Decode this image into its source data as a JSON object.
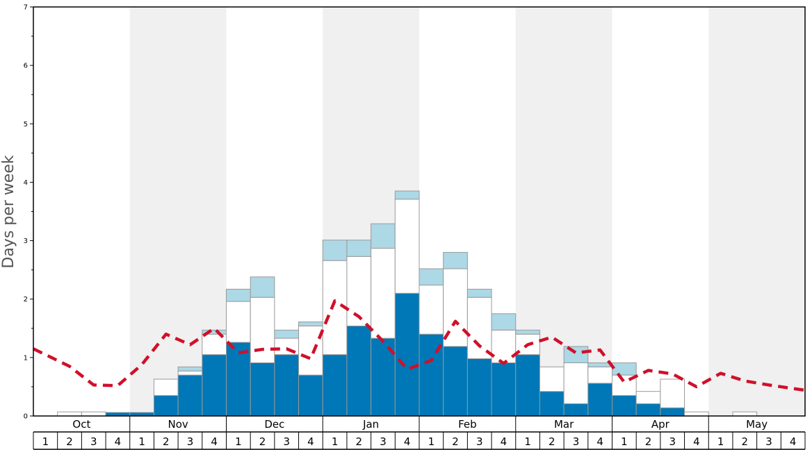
{
  "chart_data": {
    "type": "bar",
    "ylabel": "Days per week",
    "ylim": [
      0,
      7
    ],
    "yticks": [
      0,
      1,
      2,
      3,
      4,
      5,
      6,
      7
    ],
    "months": [
      "Oct",
      "Nov",
      "Dec",
      "Jan",
      "Feb",
      "Mar",
      "Apr",
      "May"
    ],
    "week_labels": [
      "1",
      "2",
      "3",
      "4"
    ],
    "shaded_months": [
      "Nov",
      "Jan",
      "Mar",
      "May"
    ],
    "colors": {
      "dark": "#0077b6",
      "white": "#ffffff",
      "light": "#add8e6",
      "line": "#d0102a",
      "shade": "#f0f0f0"
    },
    "categories": [
      "Oct-1",
      "Oct-2",
      "Oct-3",
      "Oct-4",
      "Nov-1",
      "Nov-2",
      "Nov-3",
      "Nov-4",
      "Dec-1",
      "Dec-2",
      "Dec-3",
      "Dec-4",
      "Jan-1",
      "Jan-2",
      "Jan-3",
      "Jan-4",
      "Feb-1",
      "Feb-2",
      "Feb-3",
      "Feb-4",
      "Mar-1",
      "Mar-2",
      "Mar-3",
      "Mar-4",
      "Apr-1",
      "Apr-2",
      "Apr-3",
      "Apr-4",
      "May-1",
      "May-2",
      "May-3",
      "May-4"
    ],
    "series": [
      {
        "values": [
          0,
          0,
          0,
          0.06,
          0.06,
          0.35,
          0.7,
          1.05,
          1.26,
          0.91,
          1.05,
          0.7,
          1.05,
          1.54,
          1.33,
          2.1,
          1.4,
          1.19,
          0.98,
          0.91,
          1.05,
          0.42,
          0.21,
          0.56,
          0.35,
          0.21,
          0.14,
          0,
          0,
          0,
          0,
          0
        ]
      },
      {
        "values": [
          0,
          0.07,
          0.07,
          0,
          0,
          0.28,
          0.07,
          0.35,
          0.7,
          1.12,
          0.28,
          0.84,
          1.61,
          1.19,
          1.54,
          1.61,
          0.84,
          1.33,
          1.05,
          0.56,
          0.35,
          0.42,
          0.7,
          0.28,
          0.35,
          0.21,
          0.49,
          0.07,
          0,
          0.07,
          0,
          0
        ]
      },
      {
        "values": [
          0,
          0,
          0,
          0,
          0,
          0,
          0.07,
          0.07,
          0.21,
          0.35,
          0.14,
          0.07,
          0.35,
          0.28,
          0.42,
          0.14,
          0.28,
          0.28,
          0.14,
          0.28,
          0.07,
          0,
          0.28,
          0.07,
          0.21,
          0,
          0,
          0,
          0,
          0,
          0,
          0
        ]
      }
    ],
    "line": {
      "values": [
        1.15,
        0.85,
        0.53,
        0.52,
        0.88,
        1.4,
        1.22,
        1.5,
        1.08,
        1.14,
        1.15,
        0.98,
        1.97,
        1.7,
        1.28,
        0.8,
        0.95,
        1.62,
        1.2,
        0.9,
        1.22,
        1.35,
        1.08,
        1.13,
        0.58,
        0.78,
        0.72,
        0.5,
        0.73,
        0.6,
        0.53,
        0.44
      ]
    },
    "grid": false
  }
}
